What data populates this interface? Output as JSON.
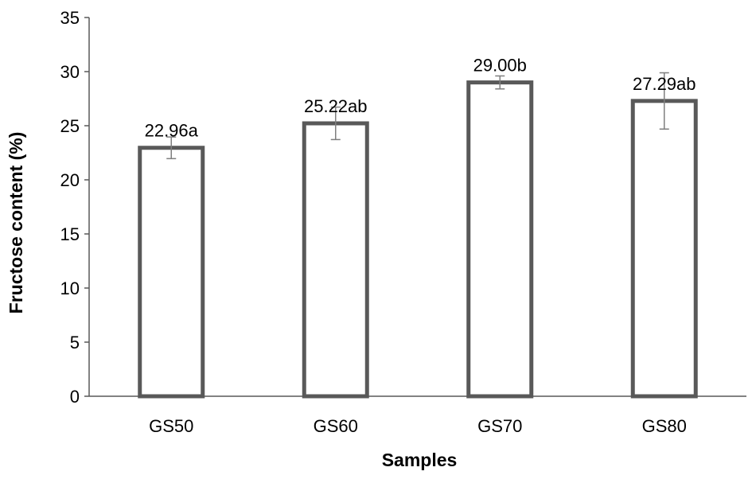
{
  "chart_data": {
    "type": "bar",
    "title": "",
    "xlabel": "Samples",
    "ylabel": "Fructose content (%)",
    "ylim": [
      0,
      35
    ],
    "yticks": [
      0,
      5,
      10,
      15,
      20,
      25,
      30,
      35
    ],
    "categories": [
      "GS50",
      "GS60",
      "GS70",
      "GS80"
    ],
    "values": [
      22.96,
      25.22,
      29.0,
      27.29
    ],
    "error_bars": [
      1.0,
      1.5,
      0.6,
      2.6
    ],
    "labels": [
      "22.96a",
      "25.22ab",
      "29.00b",
      "27.29ab"
    ],
    "grid": false,
    "legend": "none",
    "colors": {
      "bar_fill": "#ffffff",
      "bar_edge": "#595959",
      "axis": "#595959",
      "error_bar": "#7f7f7f"
    }
  }
}
